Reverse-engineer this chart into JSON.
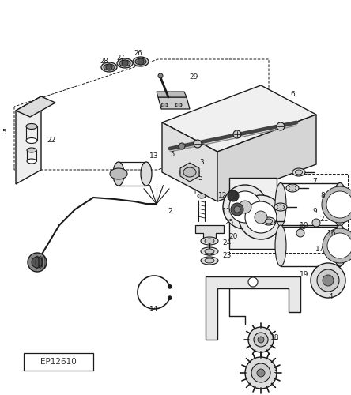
{
  "bg_color": "#ffffff",
  "lc": "#1a1a1a",
  "label_color": "#1a1a1a",
  "fig_width": 4.44,
  "fig_height": 5.0,
  "dpi": 100,
  "ep_label": "EP12610"
}
